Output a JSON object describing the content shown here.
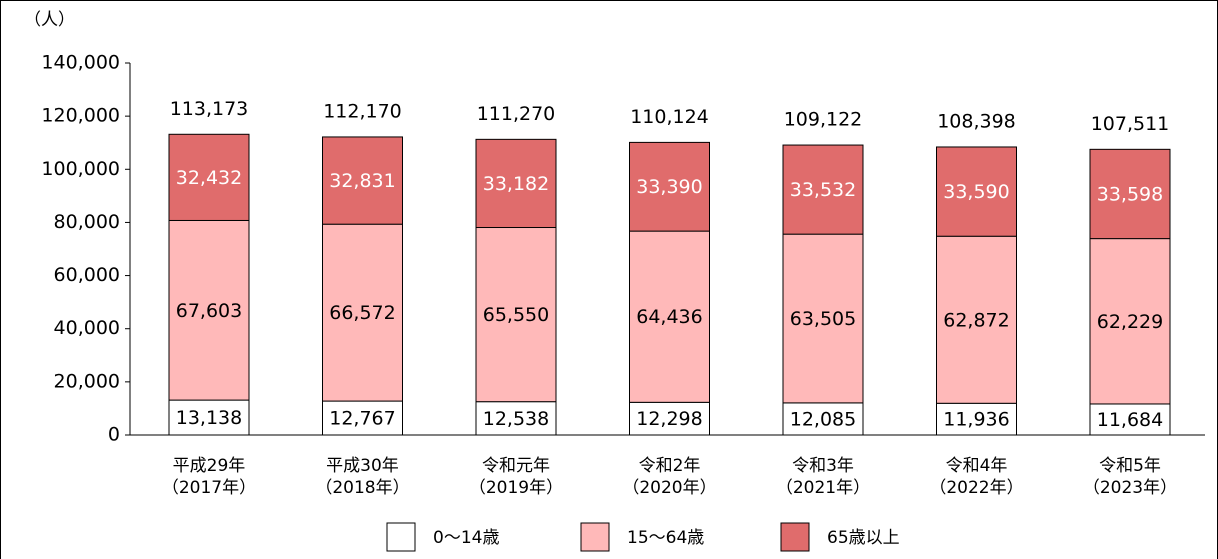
{
  "chart_data": {
    "type": "stacked_bar",
    "y_unit": "（人）",
    "categories": [
      [
        "平成29年",
        "（2017年）"
      ],
      [
        "平成30年",
        "（2018年）"
      ],
      [
        "令和元年",
        "（2019年）"
      ],
      [
        "令和2年",
        "（2020年）"
      ],
      [
        "令和3年",
        "（2021年）"
      ],
      [
        "令和4年",
        "（2022年）"
      ],
      [
        "令和5年",
        "（2023年）"
      ]
    ],
    "series": [
      {
        "name": "0～14歳",
        "color": "#ffffff",
        "label_color": "#000000",
        "values": [
          13138,
          12767,
          12538,
          12298,
          12085,
          11936,
          11684
        ],
        "value_labels": [
          "13,138",
          "12,767",
          "12,538",
          "12,298",
          "12,085",
          "11,936",
          "11,684"
        ]
      },
      {
        "name": "15～64歳",
        "color": "#ffb9b9",
        "label_color": "#000000",
        "values": [
          67603,
          66572,
          65550,
          64436,
          63505,
          62872,
          62229
        ],
        "value_labels": [
          "67,603",
          "66,572",
          "65,550",
          "64,436",
          "63,505",
          "62,872",
          "62,229"
        ]
      },
      {
        "name": "65歳以上",
        "color": "#e06c6c",
        "label_color": "#ffffff",
        "values": [
          32432,
          32831,
          33182,
          33390,
          33532,
          33590,
          33598
        ],
        "value_labels": [
          "32,432",
          "32,831",
          "33,182",
          "33,390",
          "33,532",
          "33,590",
          "33,598"
        ]
      }
    ],
    "totals": [
      113173,
      112170,
      111270,
      110124,
      109122,
      108398,
      107511
    ],
    "total_labels": [
      "113,173",
      "112,170",
      "111,270",
      "110,124",
      "109,122",
      "108,398",
      "107,511"
    ],
    "ylim": [
      0,
      140000
    ],
    "yticks": [
      0,
      {
        "value": 20000,
        "label": "20,000"
      },
      {
        "value": 40000,
        "label": "40,000"
      },
      {
        "value": 60000,
        "label": "60,000"
      },
      {
        "value": 80000,
        "label": "80,000"
      },
      {
        "value": 100000,
        "label": "100,000"
      },
      {
        "value": 120000,
        "label": "120,000"
      },
      {
        "value": 140000,
        "label": "140,000"
      }
    ],
    "grid": false
  }
}
